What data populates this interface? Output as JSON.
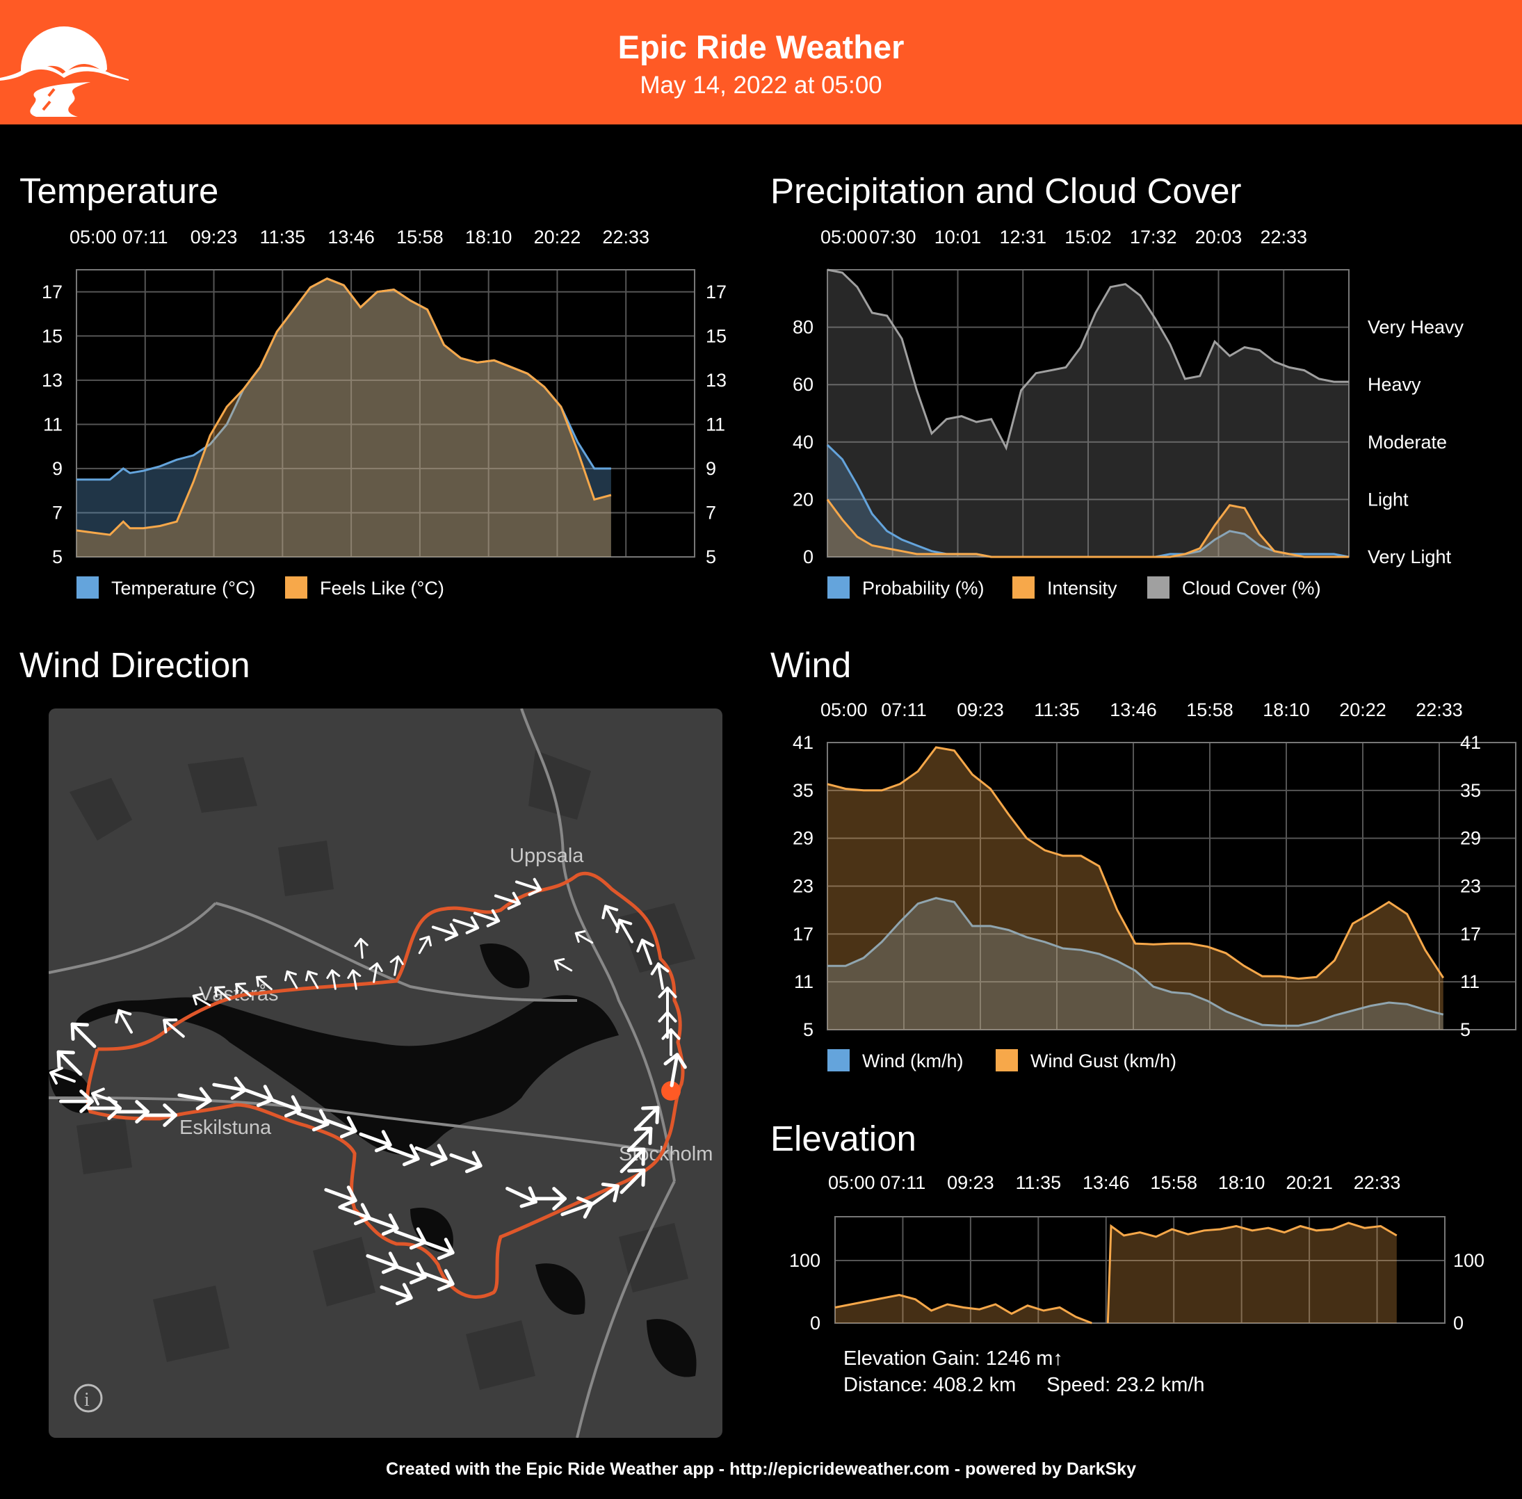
{
  "app": {
    "title": "Epic Ride Weather",
    "date": "May 14, 2022 at 05:00"
  },
  "sections": {
    "temperature": "Temperature",
    "precipitation": "Precipitation and Cloud Cover",
    "wind_direction": "Wind Direction",
    "wind": "Wind",
    "elevation": "Elevation"
  },
  "map": {
    "labels": [
      "Uppsala",
      "Västerås",
      "Eskilstuna",
      "Stockholm"
    ],
    "info_icon": "info-icon"
  },
  "elevation_stats": {
    "gain": "Elevation Gain: 1246 m↑",
    "distance": "Distance: 408.2 km",
    "speed": "Speed: 23.2 km/h"
  },
  "footer": "Created with the Epic Ride Weather app - http://epicrideweather.com - powered by DarkSky",
  "colors": {
    "header": "#ff5a25",
    "blue": "#64a4dc",
    "orange": "#f7a84a",
    "gray": "#a0a0a0",
    "route": "#e0572a"
  },
  "chart_data": [
    {
      "id": "temperature",
      "type": "area",
      "title": "Temperature",
      "x_ticks": [
        "05:00",
        "07:11",
        "09:23",
        "11:35",
        "13:46",
        "15:58",
        "18:10",
        "20:22",
        "22:33"
      ],
      "y_ticks": [
        5,
        7,
        9,
        11,
        13,
        15,
        17
      ],
      "ylim": [
        5,
        18
      ],
      "x_hours": [
        0,
        0.5,
        1,
        1.4,
        1.6,
        2,
        2.5,
        3,
        3.5,
        4,
        4.5,
        5,
        5.5,
        6,
        6.5,
        7,
        7.5,
        8,
        8.5,
        9,
        9.5,
        10,
        10.5,
        11,
        11.5,
        12,
        12.5,
        13,
        13.5,
        14,
        14.5,
        15,
        15.5,
        16,
        16.5,
        17,
        17.5
      ],
      "series": [
        {
          "name": "Temperature (°C)",
          "color": "#64a4dc",
          "values": [
            8.5,
            8.5,
            8.5,
            9.0,
            8.8,
            8.9,
            9.1,
            9.4,
            9.6,
            10.1,
            11.0,
            12.6,
            13.6,
            15.2,
            16.2,
            17.2,
            17.6,
            17.3,
            16.3,
            17.0,
            17.1,
            16.6,
            16.2,
            14.6,
            14.0,
            13.8,
            13.9,
            13.6,
            13.3,
            12.7,
            11.8,
            10.2,
            9.0,
            9.0,
            null,
            null,
            null
          ]
        },
        {
          "name": "Feels Like (°C)",
          "color": "#f7a84a",
          "values": [
            6.2,
            6.1,
            6.0,
            6.6,
            6.3,
            6.3,
            6.4,
            6.6,
            8.4,
            10.5,
            11.8,
            12.6,
            13.6,
            15.2,
            16.2,
            17.2,
            17.6,
            17.3,
            16.3,
            17.0,
            17.1,
            16.6,
            16.2,
            14.6,
            14.0,
            13.8,
            13.9,
            13.6,
            13.3,
            12.7,
            11.8,
            9.8,
            7.6,
            7.8,
            null,
            null,
            null
          ]
        }
      ],
      "legend": [
        "Temperature (°C)",
        "Feels Like (°C)"
      ],
      "grid": true
    },
    {
      "id": "precipitation",
      "type": "area",
      "title": "Precipitation and Cloud Cover",
      "x_ticks": [
        "05:00",
        "07:30",
        "10:01",
        "12:31",
        "15:02",
        "17:32",
        "20:03",
        "22:33"
      ],
      "y_ticks": [
        0,
        20,
        40,
        60,
        80
      ],
      "right_labels": [
        "Very Light",
        "Light",
        "Moderate",
        "Heavy",
        "Very Heavy"
      ],
      "ylim": [
        0,
        100
      ],
      "x_hours": [
        0,
        0.5,
        1,
        1.5,
        2,
        2.5,
        3,
        3.5,
        4,
        4.5,
        5,
        5.5,
        6,
        6.5,
        7,
        7.5,
        8,
        8.5,
        9,
        9.5,
        10,
        10.5,
        11,
        11.5,
        12,
        12.5,
        13,
        13.5,
        14,
        14.5,
        15,
        15.5,
        16,
        16.5,
        17,
        17.5
      ],
      "series": [
        {
          "name": "Probability (%)",
          "color": "#64a4dc",
          "values": [
            39,
            34,
            25,
            15,
            9,
            6,
            4,
            2,
            1,
            1,
            1,
            0,
            0,
            0,
            0,
            0,
            0,
            0,
            0,
            0,
            0,
            0,
            0,
            1,
            1,
            2,
            6,
            9,
            8,
            4,
            2,
            1,
            1,
            1,
            1,
            0
          ]
        },
        {
          "name": "Intensity",
          "color": "#f7a84a",
          "values": [
            20,
            13,
            7,
            4,
            3,
            2,
            1,
            1,
            1,
            1,
            1,
            0,
            0,
            0,
            0,
            0,
            0,
            0,
            0,
            0,
            0,
            0,
            0,
            0,
            1,
            3,
            11,
            18,
            17,
            8,
            2,
            1,
            0,
            0,
            0,
            0
          ]
        },
        {
          "name": "Cloud Cover (%)",
          "color": "#a0a0a0",
          "values": [
            100,
            99,
            94,
            85,
            84,
            76,
            58,
            43,
            48,
            49,
            47,
            48,
            38,
            58,
            64,
            65,
            66,
            73,
            85,
            94,
            95,
            91,
            83,
            74,
            62,
            63,
            75,
            70,
            73,
            72,
            68,
            66,
            65,
            62,
            61,
            61
          ]
        }
      ],
      "legend": [
        "Probability (%)",
        "Intensity",
        "Cloud Cover (%)"
      ],
      "grid": true
    },
    {
      "id": "wind",
      "type": "area",
      "title": "Wind",
      "x_ticks": [
        "05:00",
        "07:11",
        "09:23",
        "11:35",
        "13:46",
        "15:58",
        "18:10",
        "20:22",
        "22:33"
      ],
      "y_ticks": [
        5,
        11,
        17,
        23,
        29,
        35,
        41
      ],
      "ylim": [
        5,
        41
      ],
      "x_hours": [
        0,
        0.5,
        1,
        1.5,
        2,
        2.5,
        3,
        3.5,
        4,
        4.5,
        5,
        5.5,
        6,
        6.5,
        7,
        7.5,
        8,
        8.5,
        9,
        9.5,
        10,
        10.5,
        11,
        11.5,
        12,
        12.5,
        13,
        13.5,
        14,
        14.5,
        15,
        15.5,
        16,
        16.5,
        17,
        17.5,
        18.5
      ],
      "series": [
        {
          "name": "Wind (km/h)",
          "color": "#64a4dc",
          "values": [
            13.0,
            13.0,
            14.0,
            16.0,
            18.5,
            20.8,
            21.5,
            21.0,
            18.0,
            18.0,
            17.5,
            16.6,
            16.0,
            15.2,
            15.0,
            14.5,
            13.6,
            12.4,
            10.4,
            9.7,
            9.5,
            8.6,
            7.3,
            6.4,
            5.6,
            5.5,
            5.5,
            6.0,
            6.8,
            7.4,
            8.0,
            8.4,
            8.2,
            7.5,
            6.9,
            null,
            null
          ]
        },
        {
          "name": "Wind Gust (km/h)",
          "color": "#f7a84a",
          "values": [
            35.8,
            35.2,
            35.0,
            35.0,
            35.8,
            37.4,
            40.4,
            40.0,
            37.0,
            35.2,
            32.0,
            29.0,
            27.5,
            26.8,
            26.8,
            25.5,
            20.0,
            15.8,
            15.7,
            15.8,
            15.8,
            15.4,
            14.6,
            13.0,
            11.7,
            11.7,
            11.4,
            11.6,
            13.7,
            18.3,
            19.6,
            21.0,
            19.5,
            15.0,
            11.5,
            null,
            null
          ]
        }
      ],
      "legend": [
        "Wind (km/h)",
        "Wind Gust (km/h)"
      ],
      "grid": true
    },
    {
      "id": "elevation",
      "type": "area",
      "title": "Elevation",
      "x_ticks": [
        "05:00",
        "07:11",
        "09:23",
        "11:35",
        "13:46",
        "15:58",
        "18:10",
        "20:21",
        "22:33"
      ],
      "y_ticks": [
        0,
        100
      ],
      "ylim": [
        0,
        170
      ],
      "x_hours": [
        0,
        0.5,
        1,
        1.5,
        2,
        2.5,
        3,
        3.5,
        4,
        4.5,
        5,
        5.5,
        6,
        6.5,
        7,
        7.5,
        8,
        8.2,
        8.5,
        8.6,
        9,
        9.5,
        10,
        10.5,
        11,
        11.5,
        12,
        12.5,
        13,
        13.5,
        14,
        14.5,
        15,
        15.5,
        16,
        16.5,
        17,
        17.5
      ],
      "series": [
        {
          "name": "Elevation",
          "color": "#f7a84a",
          "values": [
            25,
            30,
            35,
            40,
            45,
            38,
            20,
            30,
            25,
            22,
            30,
            15,
            28,
            20,
            25,
            10,
            0,
            null,
            0,
            155,
            140,
            145,
            138,
            150,
            142,
            148,
            150,
            155,
            148,
            152,
            145,
            155,
            148,
            150,
            160,
            152,
            155,
            140
          ]
        }
      ],
      "grid": true
    }
  ]
}
